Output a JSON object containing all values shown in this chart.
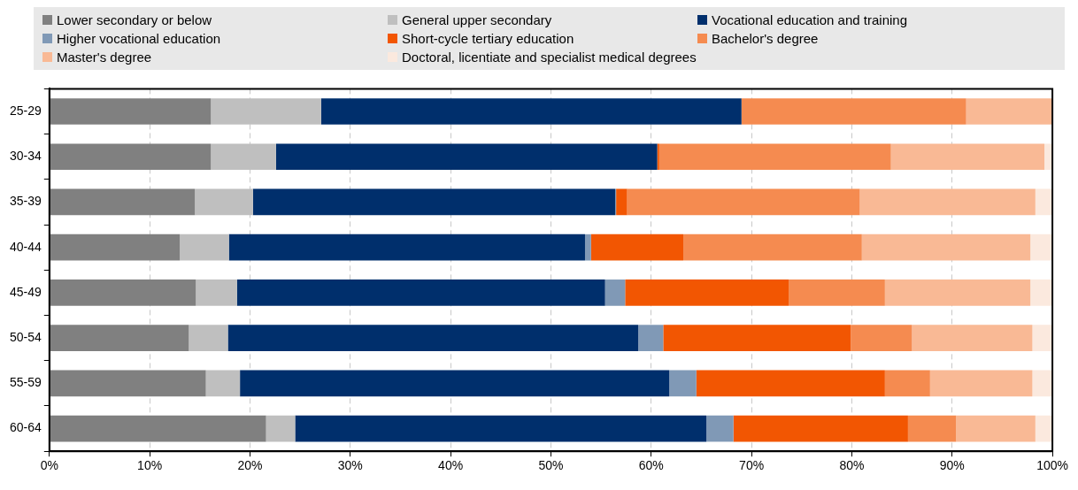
{
  "chart_data": {
    "type": "bar",
    "orientation": "horizontal",
    "stacked": true,
    "legend": "top",
    "grid": "x",
    "categories": [
      "25-29",
      "30-34",
      "35-39",
      "40-44",
      "45-49",
      "50-54",
      "55-59",
      "60-64"
    ],
    "xlim": [
      0,
      100
    ],
    "xticks": [
      {
        "value": 0,
        "label": "0%"
      },
      {
        "value": 10,
        "label": "10%"
      },
      {
        "value": 20,
        "label": "20%"
      },
      {
        "value": 30,
        "label": "30%"
      },
      {
        "value": 40,
        "label": "40%"
      },
      {
        "value": 50,
        "label": "50%"
      },
      {
        "value": 60,
        "label": "60%"
      },
      {
        "value": 70,
        "label": "70%"
      },
      {
        "value": 80,
        "label": "80%"
      },
      {
        "value": 90,
        "label": "90%"
      },
      {
        "value": 100,
        "label": "100%"
      }
    ],
    "series": [
      {
        "name": "Lower secondary or below",
        "color": "#808080",
        "values": [
          16.1,
          16.1,
          14.5,
          13.0,
          14.6,
          13.9,
          15.6,
          21.6
        ]
      },
      {
        "name": "General upper secondary",
        "color": "#bfbfbf",
        "values": [
          11.0,
          6.5,
          5.8,
          4.9,
          4.1,
          3.9,
          3.4,
          2.9
        ]
      },
      {
        "name": "Vocational education and training",
        "color": "#002f6c",
        "values": [
          41.9,
          38.0,
          36.1,
          35.5,
          36.7,
          40.9,
          42.8,
          41.0
        ]
      },
      {
        "name": "Higher vocational education",
        "color": "#8099b6",
        "values": [
          0,
          0,
          0.1,
          0.6,
          2.0,
          2.5,
          2.7,
          2.7
        ]
      },
      {
        "name": "Short-cycle tertiary education",
        "color": "#f25602",
        "values": [
          0,
          0.2,
          1.1,
          9.2,
          16.3,
          18.7,
          18.8,
          17.4
        ]
      },
      {
        "name": "Bachelor's degree",
        "color": "#f58b50",
        "values": [
          22.4,
          23.1,
          23.2,
          17.8,
          9.6,
          6.1,
          4.5,
          4.8
        ]
      },
      {
        "name": "Master's degree",
        "color": "#f9b995",
        "values": [
          8.6,
          15.3,
          17.5,
          16.8,
          14.5,
          12.0,
          10.2,
          7.9
        ]
      },
      {
        "name": "Doctoral, licentiate and specialist medical degrees",
        "color": "#fbe9de",
        "values": [
          0,
          0.8,
          1.7,
          2.2,
          2.2,
          2.0,
          2.0,
          1.7
        ]
      }
    ]
  }
}
